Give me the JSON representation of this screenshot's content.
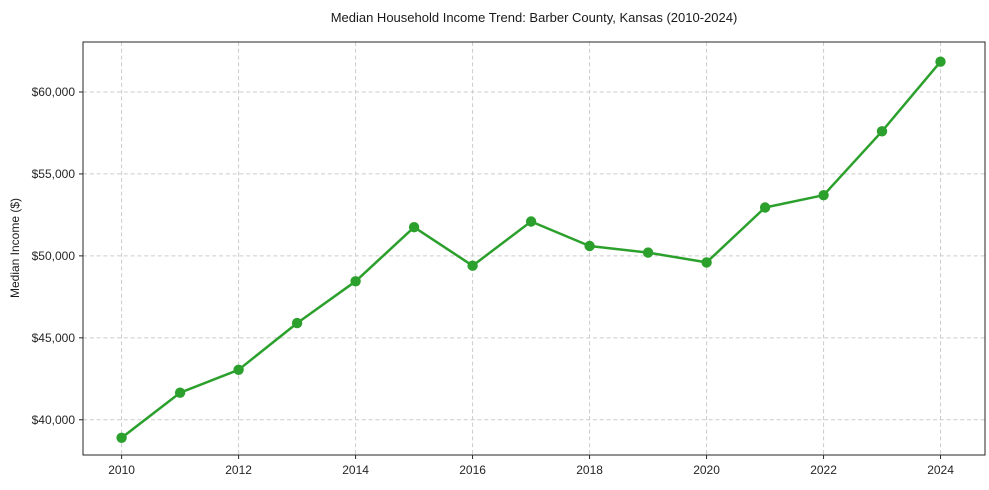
{
  "chart_data": {
    "type": "line",
    "title": "Median Household Income Trend: Barber County, Kansas (2010-2024)",
    "xlabel": "",
    "ylabel": "Median Income ($)",
    "x": [
      2010,
      2011,
      2012,
      2013,
      2014,
      2015,
      2016,
      2017,
      2018,
      2019,
      2020,
      2021,
      2022,
      2023,
      2024
    ],
    "series": [
      {
        "name": "Median Household Income",
        "values": [
          38900,
          41650,
          43050,
          45900,
          48450,
          51750,
          49400,
          52100,
          50600,
          50200,
          49600,
          52950,
          53700,
          57600,
          61850
        ],
        "color": "#2ca02c",
        "marker": "circle"
      }
    ],
    "xticks": [
      2010,
      2012,
      2014,
      2016,
      2018,
      2020,
      2022,
      2024
    ],
    "xtick_labels": [
      "2010",
      "2012",
      "2014",
      "2016",
      "2018",
      "2020",
      "2022",
      "2024"
    ],
    "yticks": [
      40000,
      45000,
      50000,
      55000,
      60000
    ],
    "ytick_labels": [
      "$40,000",
      "$45,000",
      "$50,000",
      "$55,000",
      "$60,000"
    ],
    "xlim": [
      2009.34,
      2024.76
    ],
    "ylim": [
      37850,
      63050
    ],
    "grid": true,
    "legend_position": "none",
    "colors": {
      "line": "#2ca02c",
      "grid": "#cccccc",
      "axis": "#262626",
      "tick_text": "#262626",
      "background": "#ffffff"
    }
  }
}
